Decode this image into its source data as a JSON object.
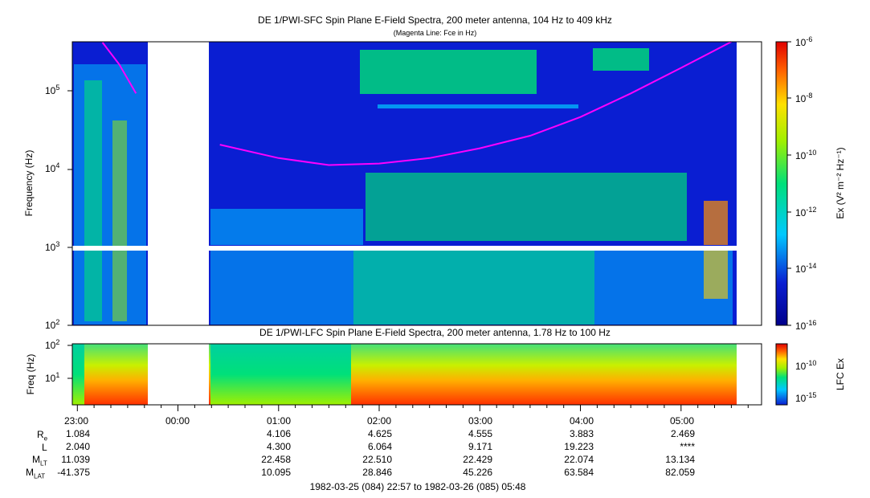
{
  "top_panel": {
    "title": "DE 1/PWI-SFC  Spin Plane E-Field Spectra, 200 meter antenna, 104 Hz to 409 kHz",
    "subtitle": "(Magenta Line: Fce in Hz)",
    "ylabel": "Frequency (Hz)",
    "ytick_labels": [
      "10",
      "10",
      "10",
      "10"
    ],
    "ytick_exps": [
      "5",
      "4",
      "3",
      "2"
    ],
    "colorbar_label": "Ex (V² m⁻² Hz⁻¹)",
    "colorbar_tick_labels": [
      "10",
      "10",
      "10",
      "10",
      "10",
      "10"
    ],
    "colorbar_tick_exps": [
      "-6",
      "-8",
      "-10",
      "-12",
      "-14",
      "-16"
    ]
  },
  "bottom_panel": {
    "title": "DE 1/PWI-LFC  Spin Plane E-Field Spectra, 200 meter antenna, 1.78 Hz to 100 Hz",
    "ylabel": "Freq (Hz)",
    "ytick_labels": [
      "10",
      "10"
    ],
    "ytick_exps": [
      "2",
      "1"
    ],
    "colorbar_label": "LFC Ex",
    "colorbar_tick_labels": [
      "10",
      "10"
    ],
    "colorbar_tick_exps": [
      "-10",
      "-15"
    ]
  },
  "time_axis": {
    "labels": [
      "23:00",
      "00:00",
      "01:00",
      "02:00",
      "03:00",
      "04:00",
      "05:00"
    ]
  },
  "ephemeris": {
    "row_labels": [
      {
        "main": "R",
        "sub": "e"
      },
      {
        "main": "L",
        "sub": ""
      },
      {
        "main": "M",
        "sub": "LT"
      },
      {
        "main": "M",
        "sub": "LAT"
      }
    ],
    "rows": [
      [
        "1.084",
        "",
        "4.106",
        "4.625",
        "4.555",
        "3.883",
        "2.469"
      ],
      [
        "2.040",
        "",
        "4.300",
        "6.064",
        "9.171",
        "19.223",
        "****"
      ],
      [
        "11.039",
        "",
        "22.458",
        "22.510",
        "22.429",
        "22.074",
        "13.134"
      ],
      [
        "-41.375",
        "",
        "10.095",
        "28.846",
        "45.226",
        "63.584",
        "82.059"
      ]
    ]
  },
  "footer": "1982-03-25 (084) 22:57 to 1982-03-26 (085) 05:48",
  "colors": {
    "background_dark": "#0a1ed2",
    "magenta_line": "#ff00ff",
    "data_gap": "#ffffff"
  },
  "chart_data": [
    {
      "type": "heatmap",
      "title": "DE 1/PWI-SFC  Spin Plane E-Field Spectra, 200 meter antenna, 104 Hz to 409 kHz",
      "subtitle": "(Magenta Line: Fce in Hz)",
      "xlabel": "",
      "ylabel": "Frequency (Hz)",
      "x_time_range": [
        "1982-03-25 22:57",
        "1982-03-26 05:48"
      ],
      "x_ticks": [
        "23:00",
        "00:00",
        "01:00",
        "02:00",
        "03:00",
        "04:00",
        "05:00"
      ],
      "yscale": "log",
      "ylim": [
        100,
        409000
      ],
      "colorbar": {
        "label": "Ex (V^2 m^-2 Hz^-1)",
        "scale": "log",
        "range": [
          1e-16,
          1e-06
        ]
      },
      "data_gaps_time": [
        [
          "23:42",
          "00:18"
        ]
      ],
      "fce_line": {
        "name": "Fce",
        "time": [
          "23:15",
          "23:25",
          "23:35",
          "00:25",
          "01:00",
          "01:30",
          "02:00",
          "02:30",
          "03:00",
          "03:30",
          "04:00",
          "04:30",
          "05:00",
          "05:30"
        ],
        "freq_hz": [
          400000,
          210000,
          90000,
          20000,
          13500,
          11000,
          11500,
          13500,
          18000,
          26000,
          45000,
          90000,
          190000,
          409000
        ]
      }
    },
    {
      "type": "heatmap",
      "title": "DE 1/PWI-LFC  Spin Plane E-Field Spectra, 200 meter antenna, 1.78 Hz to 100 Hz",
      "ylabel": "Freq (Hz)",
      "yscale": "log",
      "ylim": [
        1.78,
        100
      ],
      "colorbar": {
        "label": "LFC Ex",
        "scale": "log"
      },
      "data_gaps_time": [
        [
          "23:42",
          "00:18"
        ]
      ]
    }
  ]
}
